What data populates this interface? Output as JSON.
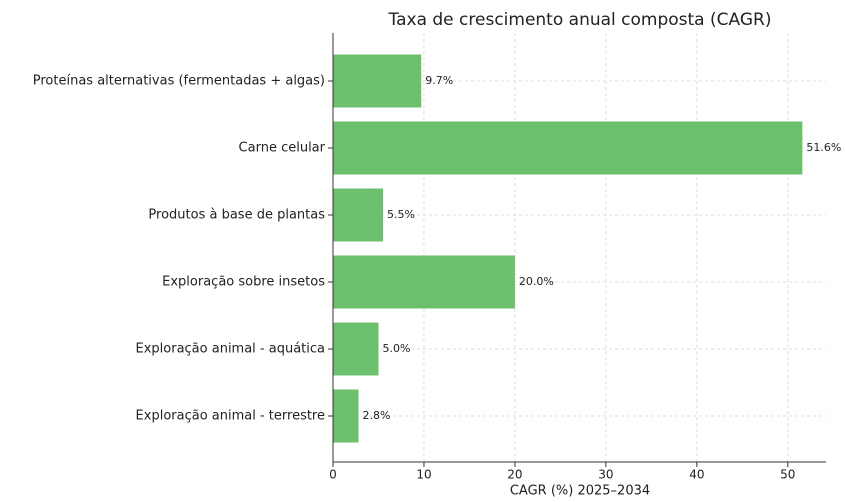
{
  "chart_data": {
    "type": "barh",
    "title": "Taxa de crescimento anual composta (CAGR)",
    "x_label": "CAGR (%) 2025–2034",
    "categories": [
      "Proteínas alternativas (fermentadas + algas)",
      "Carne celular",
      "Produtos à base de plantas",
      "Exploração sobre insetos",
      "Exploração animal - aquática",
      "Exploração animal - terrestre"
    ],
    "values": [
      9.7,
      51.6,
      5.5,
      20.0,
      5.0,
      2.8
    ],
    "value_labels": [
      "9.7%",
      "51.6%",
      "5.5%",
      "20.0%",
      "5.0%",
      "2.8%"
    ],
    "color": "#6cbf6c",
    "xlim": [
      0,
      54.2
    ],
    "xticks": [
      0,
      10,
      20,
      30,
      40,
      50
    ],
    "grid": true
  }
}
